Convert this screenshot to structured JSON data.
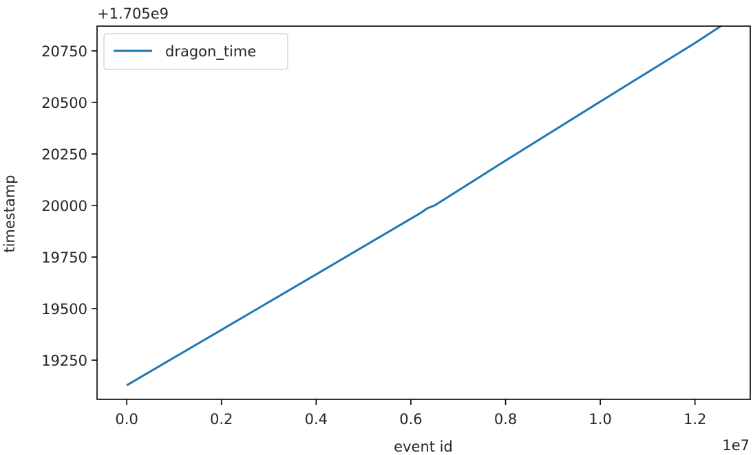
{
  "chart_data": {
    "type": "line",
    "title": "",
    "xlabel": "event id",
    "ylabel": "timestamp",
    "x_offset_label": "1e7",
    "y_offset_label": "+1.705e9",
    "xlim": [
      -0.0627,
      1.3167
    ],
    "ylim": [
      19060,
      20870
    ],
    "x_ticks": [
      0.0,
      0.2,
      0.4,
      0.6,
      0.8,
      1.0,
      1.2
    ],
    "x_tick_labels": [
      "0.0",
      "0.2",
      "0.4",
      "0.6",
      "0.8",
      "1.0",
      "1.2"
    ],
    "y_ticks": [
      19250,
      19500,
      19750,
      20000,
      20250,
      20500,
      20750
    ],
    "y_tick_labels": [
      "19250",
      "19500",
      "19750",
      "20000",
      "20250",
      "20500",
      "20750"
    ],
    "grid": false,
    "legend_position": "upper-left",
    "series": [
      {
        "name": "dragon_time",
        "color": "#1f77b4",
        "x": [
          0.0,
          0.2,
          0.4,
          0.6,
          0.62,
          0.635,
          0.65,
          0.8,
          1.0,
          1.2,
          1.254
        ],
        "y": [
          19128,
          19397,
          19666,
          19936,
          19963,
          19987,
          20000,
          20218,
          20504,
          20788,
          20869
        ]
      }
    ]
  }
}
